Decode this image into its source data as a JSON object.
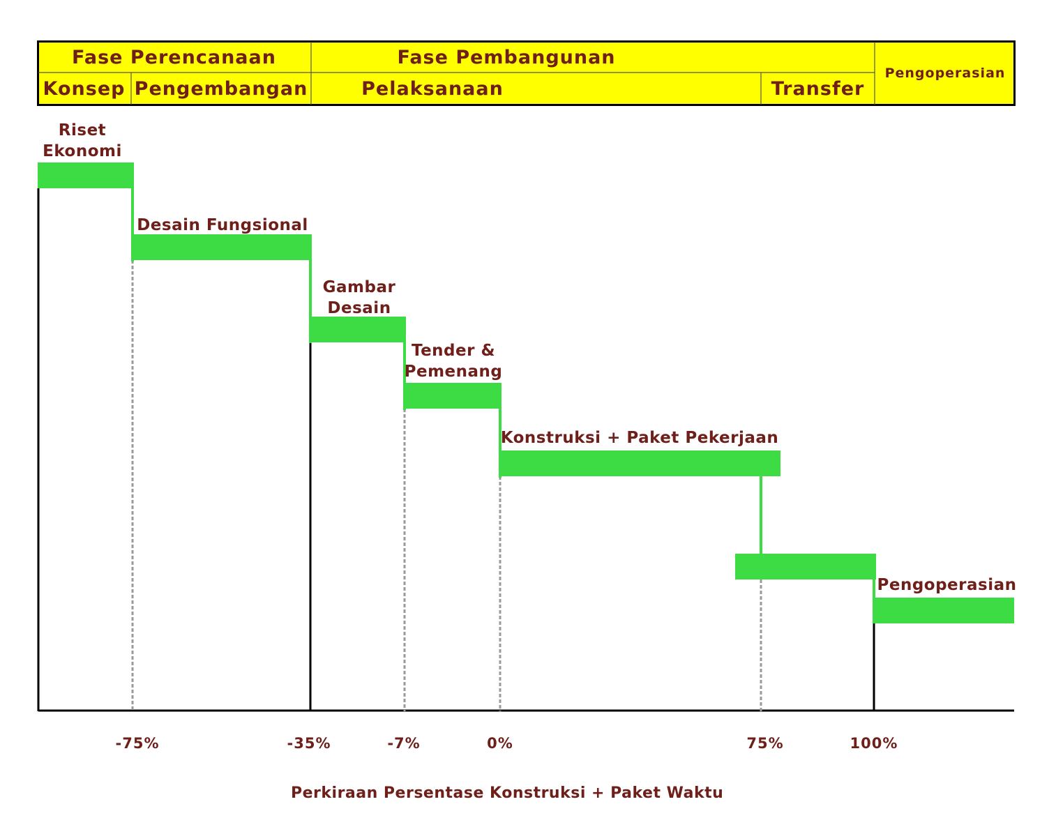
{
  "header": {
    "phase_planning": "Fase Perencanaan",
    "phase_construction": "Fase Pembangunan",
    "phase_operation": "Pengoperasian",
    "sub_concept": "Konsep",
    "sub_development": "Pengembangan",
    "sub_execution": "Pelaksanaan",
    "sub_transfer": "Transfer"
  },
  "stages": {
    "economic_research_line1": "Riset",
    "economic_research_line2": "Ekonomi",
    "functional_design": "Desain Fungsional",
    "design_drawing_line1": "Gambar",
    "design_drawing_line2": "Desain",
    "tender_line1": "Tender &",
    "tender_line2": "Pemenang",
    "construction": "Konstruksi + Paket Pekerjaan",
    "operation": "Pengoperasian"
  },
  "axis": {
    "ticks": [
      "-75%",
      "-35%",
      "-7%",
      "0%",
      "75%",
      "100%"
    ],
    "title": "Perkiraan Persentase Konstruksi + Paket Waktu"
  },
  "colors": {
    "header_fill": "#ffff00",
    "bar_fill": "#3ddc45",
    "text": "#6e1f1a",
    "line": "#000000",
    "dashed": "#9a9a9a"
  }
}
